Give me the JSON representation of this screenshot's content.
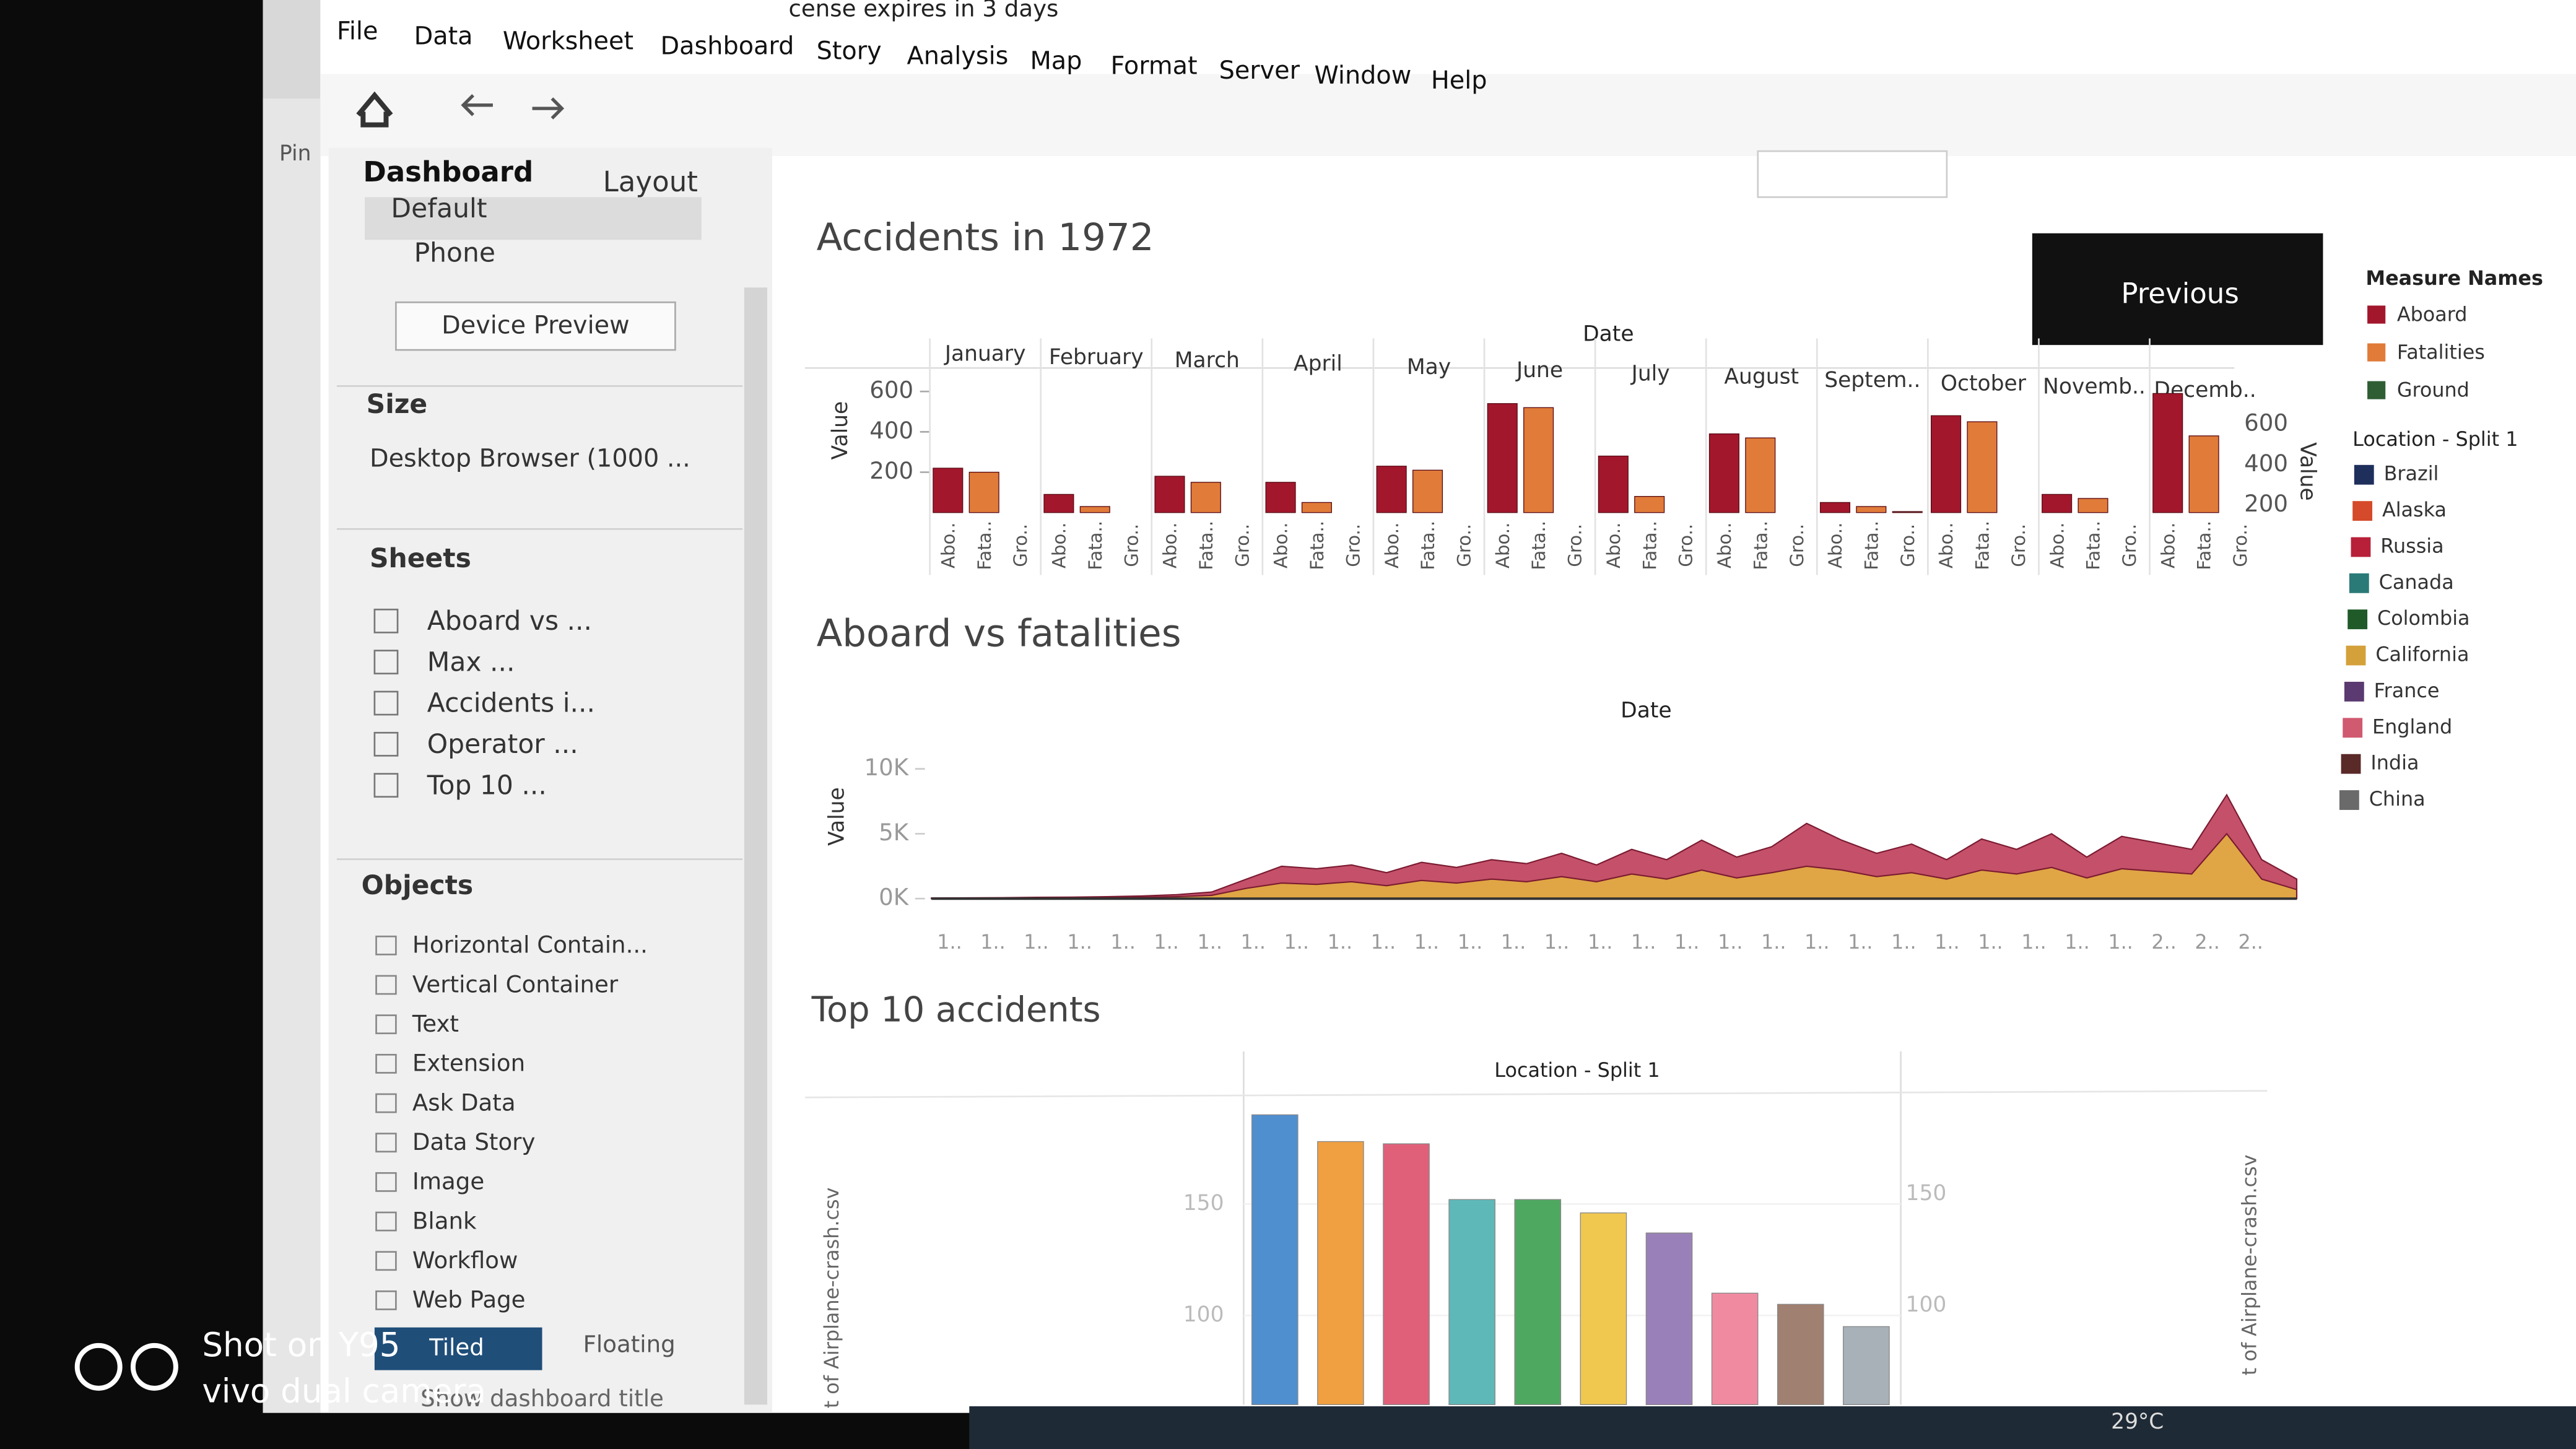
{
  "banner": "cense expires in 3 days",
  "menu": [
    "File",
    "Data",
    "Worksheet",
    "Dashboard",
    "Story",
    "Analysis",
    "Map",
    "Format",
    "Server",
    "Window",
    "Help"
  ],
  "left_panel": {
    "pin": "Pin",
    "tabs": [
      "Dashboard",
      "Layout"
    ],
    "devices": [
      "Default",
      "Phone"
    ],
    "device_preview": "Device Preview",
    "size_heading": "Size",
    "size_value": "Desktop Browser (1000 ...",
    "sheets_heading": "Sheets",
    "sheets": [
      "Aboard vs ...",
      "Max ...",
      "Accidents i...",
      "Operator ...",
      "Top 10 ..."
    ],
    "objects_heading": "Objects",
    "objects": [
      "Horizontal Contain...",
      "Vertical Container",
      "Text",
      "Extension",
      "Ask Data",
      "Data Story",
      "Image",
      "Blank",
      "Workflow",
      "Web Page"
    ],
    "layout_modes": [
      "Tiled",
      "Floating"
    ],
    "show_title": "Show dashboard title"
  },
  "previous_button": "Previous",
  "charts": [
    {
      "type": "bar",
      "title": "Accidents in 1972",
      "x_header": "Date",
      "y_label": "Value",
      "legend_title": "Measure Names",
      "categories": [
        "January",
        "February",
        "March",
        "April",
        "May",
        "June",
        "July",
        "August",
        "Septem..",
        "October",
        "Novemb..",
        "Decemb.."
      ],
      "measure_labels": [
        "Abo..",
        "Fata..",
        "Gro.."
      ],
      "series": [
        {
          "name": "Aboard",
          "color": "#a3172d",
          "values": [
            220,
            90,
            180,
            150,
            230,
            540,
            280,
            390,
            50,
            480,
            90,
            590
          ]
        },
        {
          "name": "Fatalities",
          "color": "#e07b39",
          "values": [
            200,
            30,
            150,
            50,
            210,
            520,
            80,
            370,
            30,
            450,
            70,
            380
          ]
        },
        {
          "name": "Ground",
          "color": "#2f5e34",
          "values": [
            0,
            0,
            0,
            0,
            0,
            0,
            0,
            0,
            5,
            0,
            0,
            0
          ]
        }
      ],
      "ylim": [
        0,
        700
      ],
      "yticks": [
        200,
        400,
        600
      ]
    },
    {
      "type": "area",
      "title": "Aboard vs fatalities",
      "x_header": "Date",
      "y_label": "Value",
      "x_tick_labels": [
        "1..",
        "1..",
        "1..",
        "1..",
        "1..",
        "1..",
        "1..",
        "1..",
        "1..",
        "1..",
        "1..",
        "1..",
        "1..",
        "1..",
        "1..",
        "1..",
        "1..",
        "1..",
        "1..",
        "1..",
        "1..",
        "1..",
        "1..",
        "1..",
        "1..",
        "1..",
        "1..",
        "1..",
        "2..",
        "2..",
        "2.."
      ],
      "series": [
        {
          "color": "#c4506a",
          "values": [
            50,
            60,
            80,
            100,
            120,
            150,
            200,
            300,
            500,
            1500,
            2500,
            2300,
            2600,
            2000,
            2800,
            2400,
            3000,
            2700,
            3500,
            2600,
            3800,
            3000,
            4500,
            3200,
            4000,
            5800,
            4500,
            3500,
            4200,
            3000,
            4600,
            3800,
            5000,
            3200,
            4800,
            4300,
            3800,
            8000,
            3000,
            1500
          ]
        },
        {
          "color": "#e0a545",
          "values": [
            20,
            30,
            40,
            50,
            60,
            70,
            100,
            150,
            250,
            800,
            1200,
            1100,
            1300,
            1000,
            1400,
            1200,
            1500,
            1300,
            1700,
            1300,
            1900,
            1500,
            2200,
            1600,
            2000,
            2500,
            2200,
            1700,
            2000,
            1500,
            2200,
            1900,
            2400,
            1600,
            2300,
            2100,
            1900,
            5000,
            1500,
            700
          ]
        }
      ],
      "ylim": [
        0,
        10000
      ],
      "yticks": [
        {
          "value": 0,
          "label": "0K"
        },
        {
          "value": 5000,
          "label": "5K"
        },
        {
          "value": 10000,
          "label": "10K"
        }
      ]
    },
    {
      "type": "bar",
      "title": "Top 10 accidents",
      "x_header": "Location - Split 1",
      "y_label": "t of Airplane-crash.csv",
      "values": [
        190,
        178,
        177,
        152,
        152,
        146,
        137,
        110,
        105,
        95
      ],
      "colors": [
        "#4f8fd0",
        "#f0a040",
        "#e0607a",
        "#5fb8b8",
        "#4fa860",
        "#f0c850",
        "#9a80b8",
        "#f08aa0",
        "#a08070",
        "#a8b0b8"
      ],
      "ylim": [
        60,
        200
      ],
      "yticks": [
        100,
        150
      ]
    }
  ],
  "location_legend": {
    "title": "Location - Split 1",
    "items": [
      {
        "name": "Brazil",
        "color": "#1e2f5c"
      },
      {
        "name": "Alaska",
        "color": "#d44a2a"
      },
      {
        "name": "Russia",
        "color": "#b8203a"
      },
      {
        "name": "Canada",
        "color": "#2a7a78"
      },
      {
        "name": "Colombia",
        "color": "#1f5a28"
      },
      {
        "name": "California",
        "color": "#d4a03a"
      },
      {
        "name": "France",
        "color": "#5a3a70"
      },
      {
        "name": "England",
        "color": "#d05a70"
      },
      {
        "name": "India",
        "color": "#5a2a28"
      },
      {
        "name": "China",
        "color": "#6a6a6a"
      }
    ]
  },
  "taskbar": {
    "temperature": "29°C"
  },
  "watermark": [
    "Shot on Y95",
    "vivo dual camera"
  ]
}
